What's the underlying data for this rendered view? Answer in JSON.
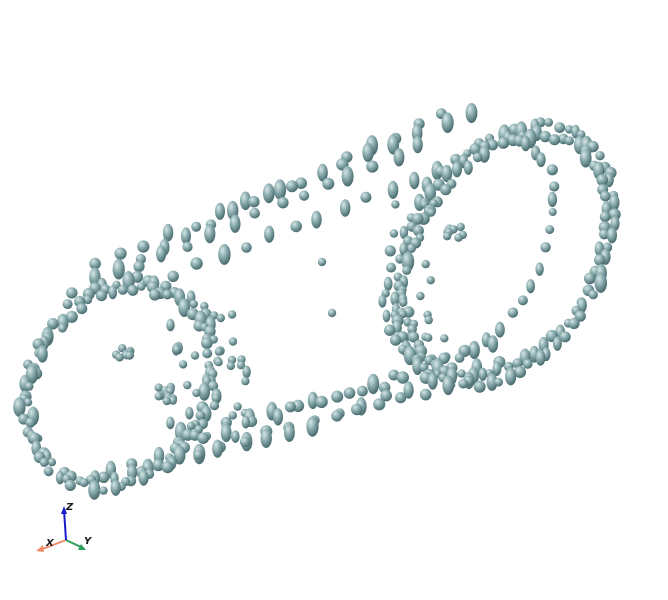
{
  "scene": {
    "background": "#ffffff",
    "particle_color": "#7fa3a6",
    "particle_highlight": "#c8dcdc",
    "particle_shadow": "#3f5f62"
  },
  "axes": {
    "x": {
      "label": "X",
      "color": "#f08b6a"
    },
    "y": {
      "label": "Y",
      "color": "#2e9e5e"
    },
    "z": {
      "label": "Z",
      "color": "#1c1cc8"
    }
  }
}
